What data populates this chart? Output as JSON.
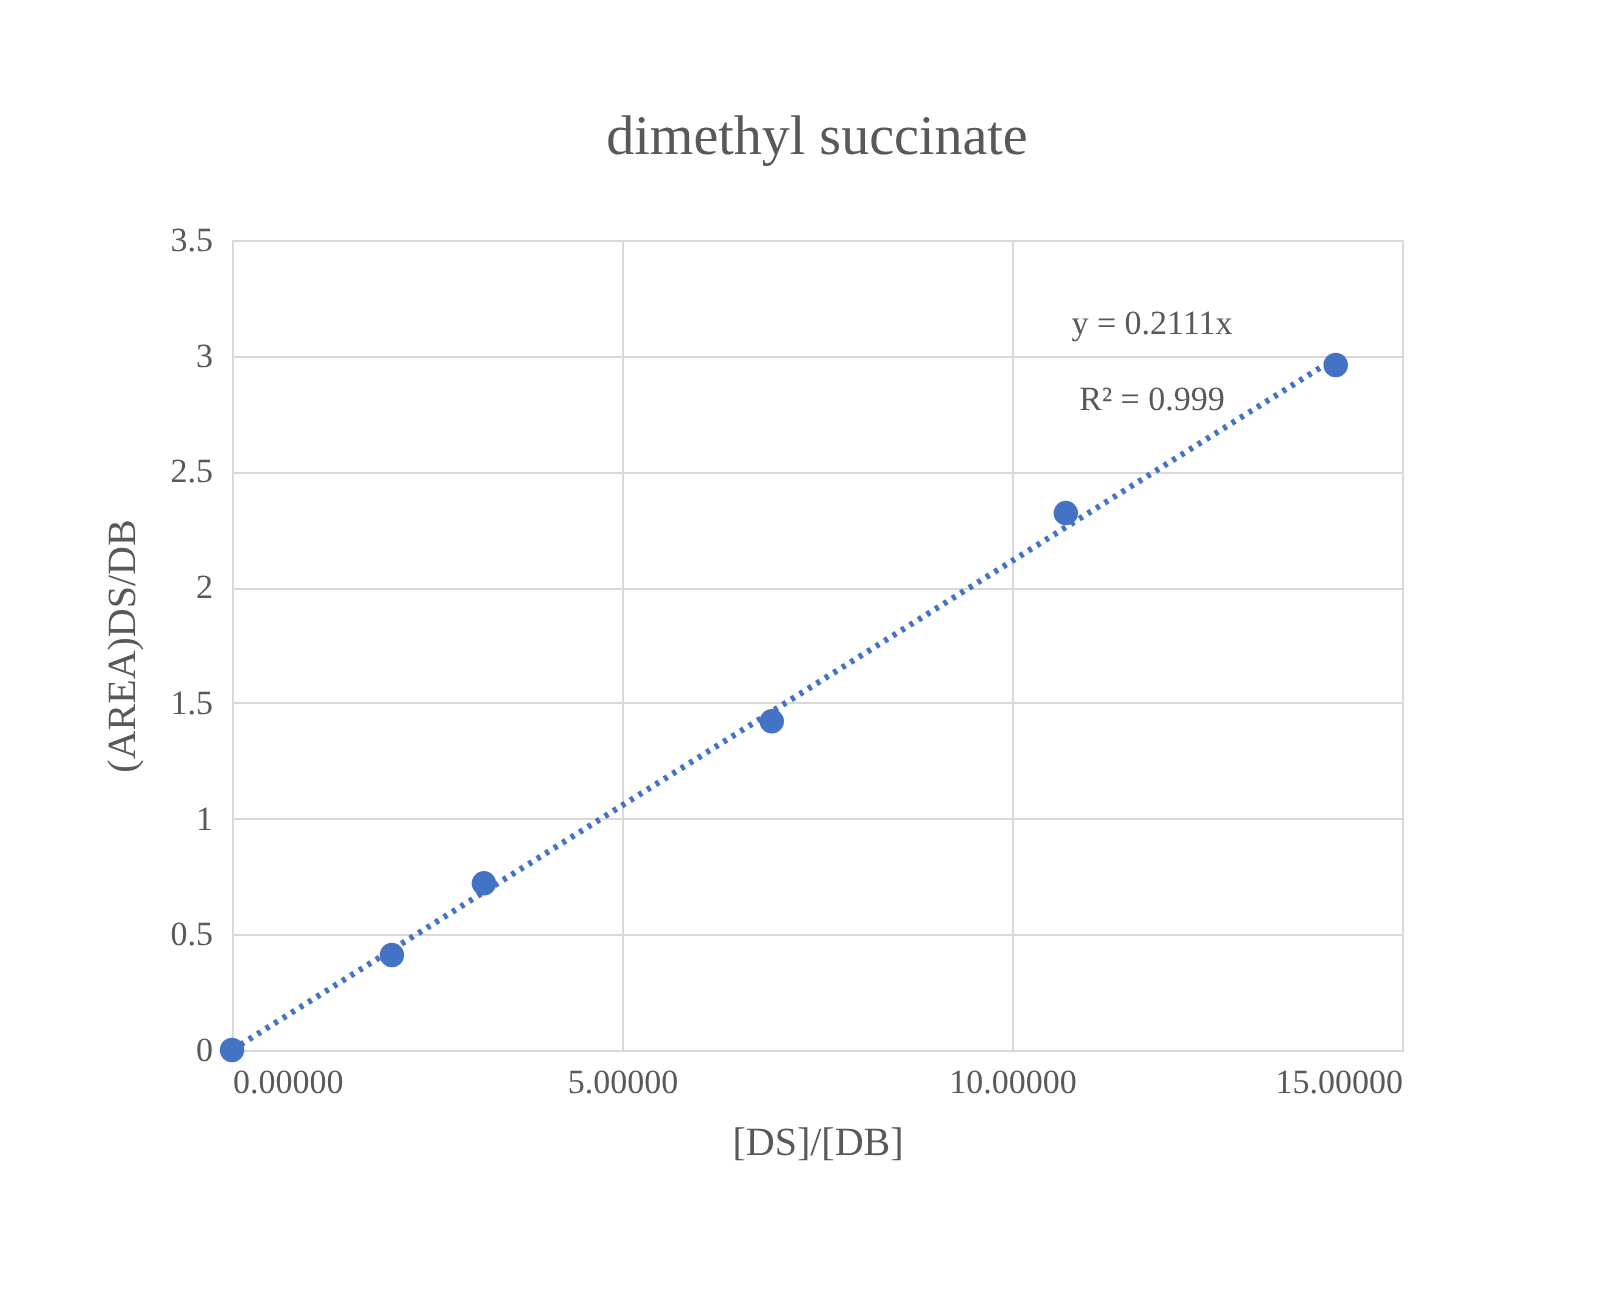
{
  "chart_data": {
    "type": "scatter",
    "title": "dimethyl succinate",
    "xlabel": "[DS]/[DB]",
    "ylabel": "(AREA)DS/DB",
    "xlim": [
      0,
      15
    ],
    "xticks": [
      {
        "value": 0,
        "label": "0.00000"
      },
      {
        "value": 5,
        "label": "5.00000"
      },
      {
        "value": 10,
        "label": "10.00000"
      },
      {
        "value": 15,
        "label": "15.00000"
      }
    ],
    "ylim": [
      0,
      3.5
    ],
    "yticks": [
      0,
      0.5,
      1,
      1.5,
      2,
      2.5,
      3,
      3.5
    ],
    "grid": true,
    "legend": false,
    "series": [
      {
        "color": "#4472c4",
        "marker": "circle",
        "x": [
          0,
          2.05,
          3.23,
          6.92,
          10.69,
          14.15
        ],
        "values": [
          0,
          0.41,
          0.72,
          1.42,
          2.32,
          2.96
        ]
      },
      {
        "type": "line",
        "color": "#4472c4",
        "marker": "none",
        "line_style": "dotted",
        "x": [
          0,
          14.15
        ],
        "values": [
          0,
          2.99
        ]
      }
    ],
    "annotations": [
      "y = 0.2111x",
      "R² = 0.999"
    ]
  }
}
